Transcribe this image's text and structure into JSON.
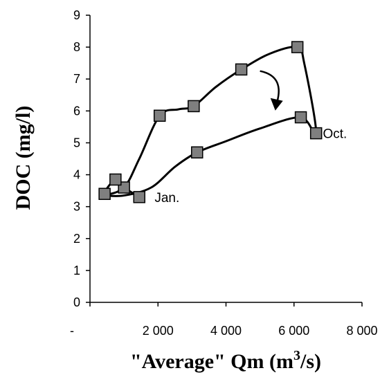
{
  "chart_data": {
    "type": "scatter",
    "title": "",
    "xlabel_prefix": "\"Average\" Qm (m",
    "xlabel_sup": "3",
    "xlabel_suffix": "/s)",
    "ylabel": "DOC (mg/l)",
    "xlim": [
      0,
      8000
    ],
    "ylim": [
      0,
      9
    ],
    "x_ticks": [
      {
        "value": 0,
        "label": "-"
      },
      {
        "value": 2000,
        "label": "2 000"
      },
      {
        "value": 4000,
        "label": "4 000"
      },
      {
        "value": 6000,
        "label": "6 000"
      },
      {
        "value": 8000,
        "label": "8 000"
      }
    ],
    "y_ticks": [
      0,
      1,
      2,
      3,
      4,
      5,
      6,
      7,
      8,
      9
    ],
    "grid": false,
    "marker": "square",
    "marker_color": "#7f7f7f",
    "line_color": "#000000",
    "series": [
      {
        "points": [
          {
            "x": 1450,
            "y": 3.3
          },
          {
            "x": 1000,
            "y": 3.6
          },
          {
            "x": 750,
            "y": 3.85
          },
          {
            "x": 430,
            "y": 3.4
          },
          {
            "x": 2050,
            "y": 5.85
          },
          {
            "x": 3050,
            "y": 6.15
          },
          {
            "x": 4450,
            "y": 7.3
          },
          {
            "x": 6100,
            "y": 8.0
          },
          {
            "x": 6650,
            "y": 5.3
          },
          {
            "x": 6200,
            "y": 5.8
          },
          {
            "x": 3150,
            "y": 4.7
          }
        ],
        "curve": [
          [
            1450,
            3.3
          ],
          [
            1000,
            3.6
          ],
          [
            750,
            3.85
          ],
          [
            430,
            3.4
          ],
          [
            1000,
            3.6
          ],
          [
            1450,
            4.5
          ],
          [
            2050,
            5.85
          ],
          [
            2600,
            6.05
          ],
          [
            3050,
            6.15
          ],
          [
            3700,
            6.75
          ],
          [
            4450,
            7.3
          ],
          [
            5300,
            7.8
          ],
          [
            6100,
            8.0
          ],
          [
            6300,
            7.5
          ],
          [
            6650,
            5.3
          ],
          [
            6200,
            5.8
          ],
          [
            5000,
            5.45
          ],
          [
            4000,
            5.05
          ],
          [
            3150,
            4.7
          ],
          [
            2500,
            4.25
          ],
          [
            1800,
            3.6
          ],
          [
            1000,
            3.35
          ],
          [
            430,
            3.35
          ]
        ]
      }
    ],
    "annotations": [
      {
        "text": "Jan.",
        "x": 1900,
        "y": 3.3
      },
      {
        "text": "Oct.",
        "x": 6850,
        "y": 5.3
      }
    ],
    "arrow": {
      "from": [
        5000,
        7.25
      ],
      "mid": [
        5700,
        7.1
      ],
      "to": [
        5450,
        6.1
      ]
    }
  }
}
